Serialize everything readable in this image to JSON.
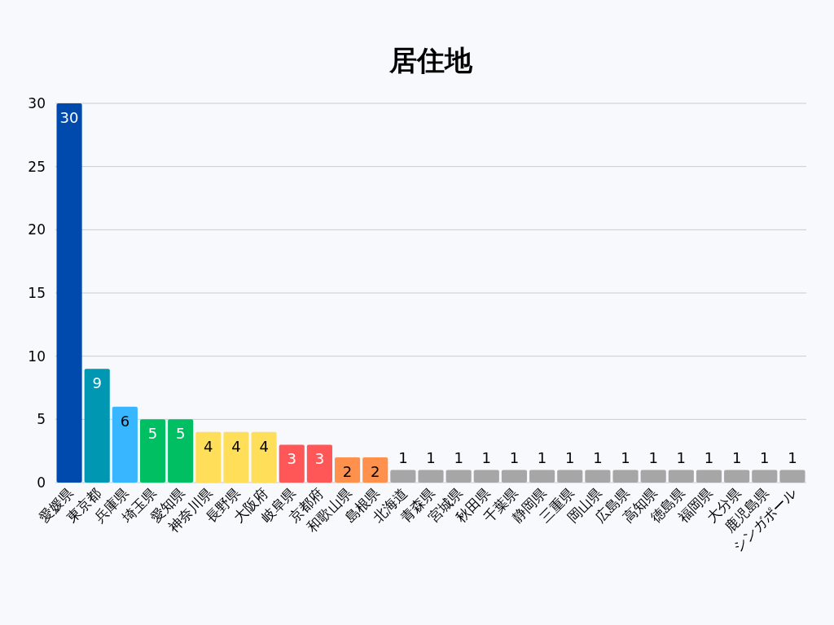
{
  "chart_data": {
    "type": "bar",
    "title": "居住地",
    "categories": [
      "愛媛県",
      "東京都",
      "兵庫県",
      "埼玉県",
      "愛知県",
      "神奈川県",
      "長野県",
      "大阪府",
      "岐阜県",
      "京都府",
      "和歌山県",
      "島根県",
      "北海道",
      "青森県",
      "宮城県",
      "秋田県",
      "千葉県",
      "静岡県",
      "三重県",
      "岡山県",
      "広島県",
      "高知県",
      "徳島県",
      "福岡県",
      "大分県",
      "鹿児島県",
      "シンガポール"
    ],
    "values": [
      30,
      9,
      6,
      5,
      5,
      4,
      4,
      4,
      3,
      3,
      2,
      2,
      1,
      1,
      1,
      1,
      1,
      1,
      1,
      1,
      1,
      1,
      1,
      1,
      1,
      1,
      1
    ],
    "colors": [
      "#004aad",
      "#0097b2",
      "#38b6ff",
      "#00bf63",
      "#00bf63",
      "#ffde59",
      "#ffde59",
      "#ffde59",
      "#ff5757",
      "#ff5757",
      "#ff914d",
      "#ff914d",
      "#a6a6a6",
      "#a6a6a6",
      "#a6a6a6",
      "#a6a6a6",
      "#a6a6a6",
      "#a6a6a6",
      "#a6a6a6",
      "#a6a6a6",
      "#a6a6a6",
      "#a6a6a6",
      "#a6a6a6",
      "#a6a6a6",
      "#a6a6a6",
      "#a6a6a6",
      "#a6a6a6"
    ],
    "ylim": [
      0,
      30
    ],
    "yticks": [
      0,
      5,
      10,
      15,
      20,
      25,
      30
    ],
    "grid": "y",
    "data_labels": true
  }
}
